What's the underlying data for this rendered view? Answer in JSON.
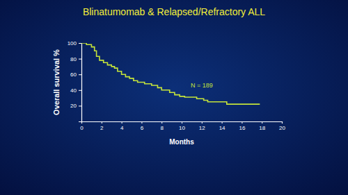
{
  "chart_data": {
    "type": "line",
    "title": "Blinatumomab & Relapsed/Refractory ALL",
    "x_label": "Months",
    "y_label": "Overall survival %",
    "annotations": [
      "N = 189"
    ],
    "x": [
      0,
      0.5,
      1,
      1.3,
      1.5,
      1.8,
      2.2,
      2.6,
      3,
      3.3,
      3.6,
      4,
      4.4,
      4.8,
      5.2,
      5.6,
      6.3,
      7,
      7.6,
      8,
      8.8,
      9.3,
      9.8,
      10.3,
      11.5,
      12.2,
      12.6,
      14.5,
      17.8
    ],
    "values": [
      100,
      98,
      95,
      90,
      83,
      78,
      75,
      72,
      70,
      68,
      64,
      60,
      57,
      55,
      52,
      50,
      48,
      46,
      43,
      40,
      37,
      34,
      32,
      31,
      29,
      27,
      25,
      22,
      22
    ],
    "color": "#c5e43a",
    "line_style": "step",
    "xlim": [
      0,
      20
    ],
    "xticks": [
      0,
      2,
      4,
      6,
      8,
      10,
      12,
      14,
      16,
      18,
      20
    ],
    "ylim": [
      0,
      100
    ],
    "yticks": [
      20,
      40,
      60,
      80,
      100
    ],
    "grid": false
  }
}
